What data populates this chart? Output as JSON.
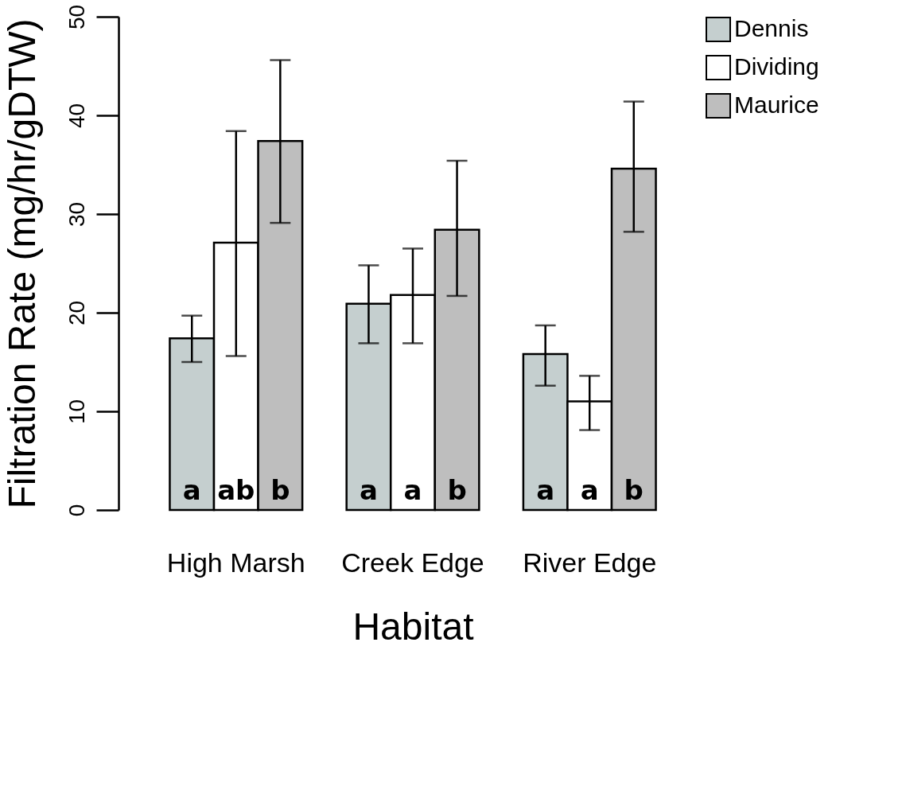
{
  "chart_data": {
    "type": "bar",
    "xlabel": "Habitat",
    "ylabel": "Filtration Rate (mg/hr/gDTW)",
    "categories": [
      "High Marsh",
      "Creek Edge",
      "River Edge"
    ],
    "series": [
      {
        "name": "Dennis",
        "color": "#c5cfcf",
        "values": [
          17.4,
          20.9,
          15.8
        ],
        "errors": [
          [
            15.0,
            19.7
          ],
          [
            16.9,
            24.8
          ],
          [
            12.6,
            18.7
          ]
        ],
        "value_labels": [
          "a",
          "a",
          "a"
        ]
      },
      {
        "name": "Dividing",
        "color": "#ffffff",
        "values": [
          27.1,
          21.8,
          11.0
        ],
        "errors": [
          [
            15.6,
            38.4
          ],
          [
            16.9,
            26.5
          ],
          [
            8.1,
            13.6
          ]
        ],
        "value_labels": [
          "ab",
          "a",
          "a"
        ]
      },
      {
        "name": "Maurice",
        "color": "#bebebe",
        "values": [
          37.4,
          28.4,
          34.6
        ],
        "errors": [
          [
            29.1,
            45.6
          ],
          [
            21.7,
            35.4
          ],
          [
            28.2,
            41.4
          ]
        ],
        "value_labels": [
          "b",
          "b",
          "b"
        ]
      }
    ],
    "ylim": [
      0,
      50
    ],
    "yticks": [
      0,
      10,
      20,
      30,
      40,
      50
    ],
    "grid": false,
    "legend": "top right"
  }
}
